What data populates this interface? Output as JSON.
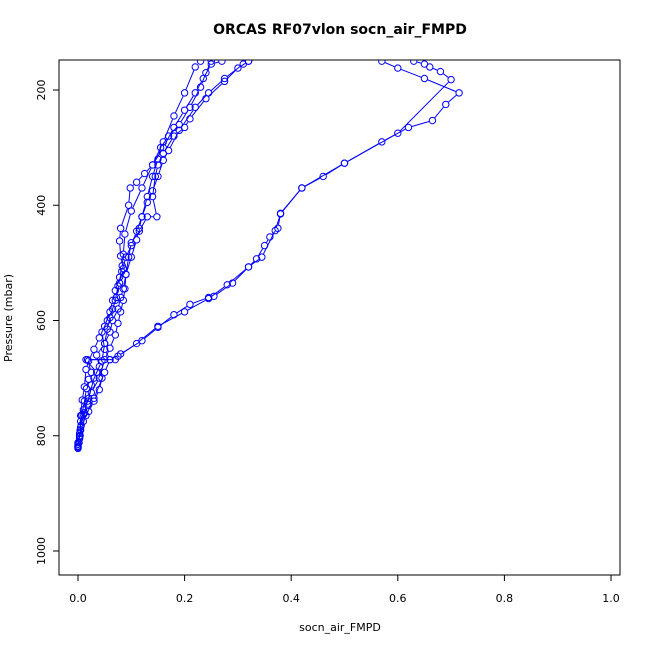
{
  "chart_data": {
    "type": "line",
    "title": "ORCAS RF07vlon socn_air_FMPD",
    "xlabel": "socn_air_FMPD",
    "ylabel": "Pressure (mbar)",
    "xlim": [
      0,
      1
    ],
    "ylim": [
      1040,
      150
    ],
    "y_axis_inverted": true,
    "x_ticks": [
      "0.0",
      "0.2",
      "0.4",
      "0.6",
      "0.8",
      "1.0"
    ],
    "y_ticks": [
      "200",
      "400",
      "600",
      "800",
      "1000"
    ],
    "grid": false,
    "legend": "none",
    "marker": "open-circle",
    "color": "#0000ff",
    "series": [
      {
        "points": [
          [
            0.0,
            822
          ],
          [
            0.002,
            812
          ],
          [
            0.003,
            800
          ],
          [
            0.004,
            790
          ],
          [
            0.005,
            765
          ],
          [
            0.008,
            738
          ],
          [
            0.012,
            715
          ],
          [
            0.015,
            685
          ],
          [
            0.02,
            670
          ],
          [
            0.03,
            650
          ],
          [
            0.04,
            630
          ],
          [
            0.05,
            610
          ],
          [
            0.06,
            585
          ],
          [
            0.065,
            565
          ],
          [
            0.07,
            548
          ],
          [
            0.078,
            525
          ],
          [
            0.083,
            505
          ],
          [
            0.085,
            485
          ],
          [
            0.088,
            450
          ],
          [
            0.1,
            410
          ],
          [
            0.12,
            370
          ],
          [
            0.14,
            330
          ],
          [
            0.16,
            290
          ],
          [
            0.18,
            245
          ],
          [
            0.2,
            205
          ],
          [
            0.22,
            160
          ],
          [
            0.23,
            150
          ]
        ]
      },
      {
        "points": [
          [
            0.0,
            820
          ],
          [
            0.003,
            805
          ],
          [
            0.005,
            775
          ],
          [
            0.01,
            755
          ],
          [
            0.02,
            735
          ],
          [
            0.03,
            700
          ],
          [
            0.045,
            670
          ],
          [
            0.05,
            640
          ],
          [
            0.055,
            615
          ],
          [
            0.06,
            595
          ],
          [
            0.07,
            565
          ],
          [
            0.075,
            540
          ],
          [
            0.082,
            515
          ],
          [
            0.09,
            490
          ],
          [
            0.1,
            470
          ],
          [
            0.11,
            445
          ],
          [
            0.12,
            420
          ],
          [
            0.13,
            385
          ],
          [
            0.14,
            350
          ],
          [
            0.15,
            320
          ],
          [
            0.155,
            300
          ],
          [
            0.17,
            280
          ],
          [
            0.19,
            260
          ],
          [
            0.21,
            230
          ],
          [
            0.23,
            195
          ],
          [
            0.24,
            170
          ],
          [
            0.25,
            150
          ]
        ]
      },
      {
        "points": [
          [
            0.0,
            818
          ],
          [
            0.005,
            790
          ],
          [
            0.015,
            765
          ],
          [
            0.03,
            735
          ],
          [
            0.05,
            690
          ],
          [
            0.06,
            668
          ],
          [
            0.05,
            650
          ],
          [
            0.045,
            620
          ],
          [
            0.055,
            600
          ],
          [
            0.065,
            580
          ],
          [
            0.072,
            560
          ],
          [
            0.078,
            535
          ],
          [
            0.085,
            510
          ],
          [
            0.08,
            488
          ],
          [
            0.078,
            462
          ],
          [
            0.08,
            440
          ],
          [
            0.095,
            400
          ],
          [
            0.098,
            370
          ],
          [
            0.11,
            360
          ],
          [
            0.125,
            345
          ],
          [
            0.14,
            330
          ],
          [
            0.16,
            300
          ],
          [
            0.18,
            265
          ],
          [
            0.2,
            235
          ],
          [
            0.22,
            205
          ],
          [
            0.235,
            180
          ],
          [
            0.25,
            155
          ],
          [
            0.27,
            150
          ]
        ]
      },
      {
        "points": [
          [
            0.0,
            815
          ],
          [
            0.004,
            800
          ],
          [
            0.01,
            775
          ],
          [
            0.02,
            758
          ],
          [
            0.03,
            740
          ],
          [
            0.04,
            720
          ],
          [
            0.045,
            700
          ],
          [
            0.04,
            680
          ],
          [
            0.035,
            660
          ],
          [
            0.05,
            640
          ],
          [
            0.06,
            620
          ],
          [
            0.065,
            600
          ],
          [
            0.075,
            580
          ],
          [
            0.08,
            560
          ],
          [
            0.085,
            545
          ],
          [
            0.09,
            520
          ],
          [
            0.1,
            490
          ],
          [
            0.11,
            460
          ],
          [
            0.115,
            440
          ],
          [
            0.12,
            420
          ],
          [
            0.13,
            395
          ],
          [
            0.14,
            375
          ],
          [
            0.15,
            350
          ],
          [
            0.16,
            322
          ],
          [
            0.17,
            305
          ],
          [
            0.19,
            270
          ],
          [
            0.22,
            230
          ],
          [
            0.245,
            205
          ],
          [
            0.275,
            180
          ],
          [
            0.31,
            155
          ],
          [
            0.32,
            150
          ]
        ]
      },
      {
        "points": [
          [
            0.0,
            818
          ],
          [
            0.005,
            785
          ],
          [
            0.012,
            760
          ],
          [
            0.018,
            740
          ],
          [
            0.025,
            725
          ],
          [
            0.04,
            700
          ],
          [
            0.05,
            668
          ],
          [
            0.06,
            648
          ],
          [
            0.07,
            625
          ],
          [
            0.075,
            605
          ],
          [
            0.08,
            585
          ],
          [
            0.085,
            565
          ],
          [
            0.088,
            545
          ],
          [
            0.09,
            520
          ],
          [
            0.095,
            490
          ],
          [
            0.1,
            465
          ],
          [
            0.115,
            445
          ],
          [
            0.13,
            420
          ],
          [
            0.148,
            420
          ],
          [
            0.14,
            385
          ],
          [
            0.145,
            350
          ],
          [
            0.15,
            330
          ],
          [
            0.16,
            310
          ],
          [
            0.18,
            280
          ],
          [
            0.2,
            265
          ],
          [
            0.21,
            250
          ],
          [
            0.24,
            215
          ],
          [
            0.275,
            185
          ],
          [
            0.3,
            162
          ],
          [
            0.32,
            150
          ]
        ]
      },
      {
        "points": [
          [
            0.0,
            812
          ],
          [
            0.003,
            802
          ],
          [
            0.006,
            782
          ],
          [
            0.01,
            763
          ],
          [
            0.018,
            745
          ],
          [
            0.025,
            712
          ],
          [
            0.035,
            690
          ],
          [
            0.015,
            668
          ],
          [
            0.06,
            668
          ],
          [
            0.08,
            658
          ],
          [
            0.12,
            635
          ],
          [
            0.15,
            612
          ],
          [
            0.18,
            590
          ],
          [
            0.21,
            572
          ],
          [
            0.245,
            560
          ],
          [
            0.255,
            558
          ],
          [
            0.29,
            535
          ],
          [
            0.32,
            507
          ],
          [
            0.335,
            493
          ],
          [
            0.35,
            470
          ],
          [
            0.36,
            455
          ],
          [
            0.375,
            440
          ],
          [
            0.38,
            414
          ],
          [
            0.42,
            370
          ],
          [
            0.46,
            350
          ],
          [
            0.5,
            327
          ],
          [
            0.57,
            290
          ],
          [
            0.62,
            265
          ],
          [
            0.665,
            253
          ],
          [
            0.69,
            225
          ],
          [
            0.715,
            205
          ],
          [
            0.65,
            180
          ],
          [
            0.6,
            162
          ],
          [
            0.57,
            150
          ]
        ]
      },
      {
        "points": [
          [
            0.0,
            820
          ],
          [
            0.003,
            796
          ],
          [
            0.007,
            764
          ],
          [
            0.012,
            740
          ],
          [
            0.016,
            718
          ],
          [
            0.02,
            702
          ],
          [
            0.025,
            690
          ],
          [
            0.018,
            668
          ],
          [
            0.07,
            668
          ],
          [
            0.075,
            662
          ],
          [
            0.11,
            640
          ],
          [
            0.15,
            610
          ],
          [
            0.2,
            585
          ],
          [
            0.245,
            562
          ],
          [
            0.28,
            538
          ],
          [
            0.32,
            507
          ],
          [
            0.345,
            490
          ],
          [
            0.37,
            444
          ],
          [
            0.38,
            415
          ],
          [
            0.42,
            370
          ],
          [
            0.5,
            327
          ],
          [
            0.6,
            275
          ],
          [
            0.7,
            182
          ],
          [
            0.68,
            168
          ],
          [
            0.66,
            160
          ],
          [
            0.65,
            155
          ],
          [
            0.63,
            150
          ]
        ]
      }
    ]
  }
}
